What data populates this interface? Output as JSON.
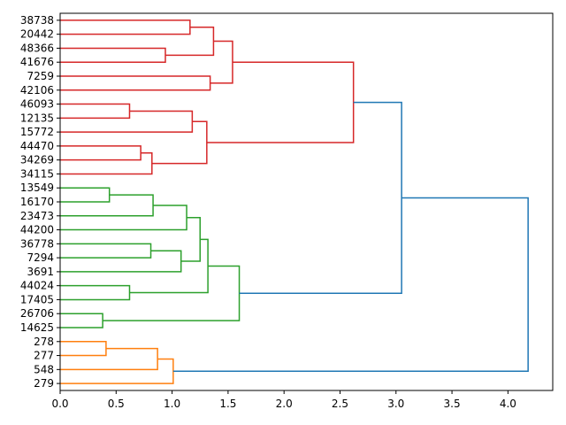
{
  "chart_data": {
    "type": "dendrogram",
    "orientation": "horizontal",
    "title": "",
    "xlabel": "",
    "ylabel": "",
    "xlim": [
      0,
      4.4
    ],
    "x_ticks": [
      {
        "value": 0.0,
        "label": "0.0"
      },
      {
        "value": 0.5,
        "label": "0.5"
      },
      {
        "value": 1.0,
        "label": "1.0"
      },
      {
        "value": 1.5,
        "label": "1.5"
      },
      {
        "value": 2.0,
        "label": "2.0"
      },
      {
        "value": 2.5,
        "label": "2.5"
      },
      {
        "value": 3.0,
        "label": "3.0"
      },
      {
        "value": 3.5,
        "label": "3.5"
      },
      {
        "value": 4.0,
        "label": "4.0"
      }
    ],
    "leaves": [
      "38738",
      "20442",
      "48366",
      "41676",
      "7259",
      "42106",
      "46093",
      "12135",
      "15772",
      "44470",
      "34269",
      "34115",
      "13549",
      "16170",
      "23473",
      "44200",
      "36778",
      "7294",
      "3691",
      "44024",
      "17405",
      "26706",
      "14625",
      "278",
      "277",
      "548",
      "279"
    ],
    "cluster_colors": {
      "red": "#d62728",
      "green": "#2ca02c",
      "orange": "#ff7f0e",
      "blue": "#1f77b4"
    },
    "merges": [
      {
        "id": "r1",
        "left": "38738",
        "right": "20442",
        "height": 1.16,
        "color": "red"
      },
      {
        "id": "r2",
        "left": "48366",
        "right": "41676",
        "height": 0.94,
        "color": "red"
      },
      {
        "id": "r3",
        "left": "r1",
        "right": "r2",
        "height": 1.37,
        "color": "red"
      },
      {
        "id": "r4",
        "left": "7259",
        "right": "42106",
        "height": 1.34,
        "color": "red"
      },
      {
        "id": "r5",
        "left": "r3",
        "right": "r4",
        "height": 1.54,
        "color": "red"
      },
      {
        "id": "r6",
        "left": "46093",
        "right": "12135",
        "height": 0.62,
        "color": "red"
      },
      {
        "id": "r7",
        "left": "r6",
        "right": "15772",
        "height": 1.18,
        "color": "red"
      },
      {
        "id": "r8",
        "left": "44470",
        "right": "34269",
        "height": 0.72,
        "color": "red"
      },
      {
        "id": "r9",
        "left": "r8",
        "right": "34115",
        "height": 0.82,
        "color": "red"
      },
      {
        "id": "r10",
        "left": "r7",
        "right": "r9",
        "height": 1.31,
        "color": "red"
      },
      {
        "id": "r11",
        "left": "r5",
        "right": "r10",
        "height": 2.62,
        "color": "red"
      },
      {
        "id": "g1",
        "left": "13549",
        "right": "16170",
        "height": 0.44,
        "color": "green"
      },
      {
        "id": "g2",
        "left": "g1",
        "right": "23473",
        "height": 0.83,
        "color": "green"
      },
      {
        "id": "g3",
        "left": "g2",
        "right": "44200",
        "height": 1.13,
        "color": "green"
      },
      {
        "id": "g4",
        "left": "36778",
        "right": "7294",
        "height": 0.81,
        "color": "green"
      },
      {
        "id": "g5",
        "left": "g4",
        "right": "3691",
        "height": 1.08,
        "color": "green"
      },
      {
        "id": "g6",
        "left": "g3",
        "right": "g5",
        "height": 1.25,
        "color": "green"
      },
      {
        "id": "g7",
        "left": "44024",
        "right": "17405",
        "height": 0.62,
        "color": "green"
      },
      {
        "id": "g8",
        "left": "g6",
        "right": "g7",
        "height": 1.32,
        "color": "green"
      },
      {
        "id": "g9",
        "left": "26706",
        "right": "14625",
        "height": 0.38,
        "color": "green"
      },
      {
        "id": "g10",
        "left": "g8",
        "right": "g9",
        "height": 1.6,
        "color": "green"
      },
      {
        "id": "o1",
        "left": "278",
        "right": "277",
        "height": 0.41,
        "color": "orange"
      },
      {
        "id": "o2",
        "left": "o1",
        "right": "548",
        "height": 0.87,
        "color": "orange"
      },
      {
        "id": "o3",
        "left": "o2",
        "right": "279",
        "height": 1.01,
        "color": "orange"
      },
      {
        "id": "b1",
        "left": "r11",
        "right": "g10",
        "height": 3.05,
        "color": "blue"
      },
      {
        "id": "b2",
        "left": "b1",
        "right": "o3",
        "height": 4.18,
        "color": "blue"
      }
    ]
  }
}
